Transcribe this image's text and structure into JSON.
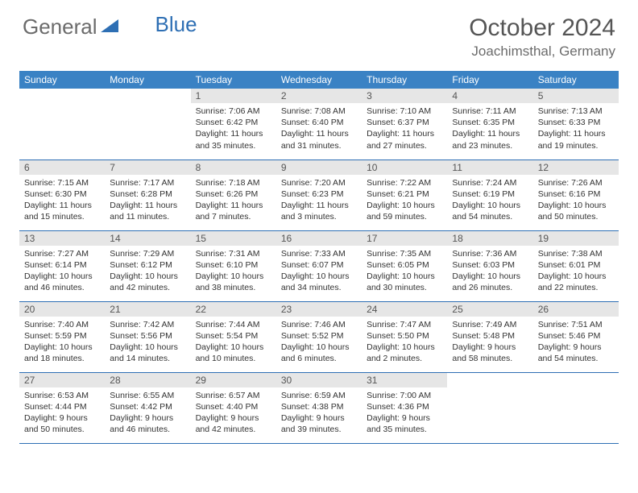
{
  "brand": {
    "part1": "General",
    "part2": "Blue"
  },
  "title": "October 2024",
  "location": "Joachimsthal, Germany",
  "colors": {
    "header_bg": "#3a82c4",
    "header_text": "#ffffff",
    "daynum_bg": "#e6e6e6",
    "text": "#333333",
    "rule": "#2e6fb4",
    "title_text": "#555555"
  },
  "font": {
    "family": "Arial",
    "title_size": 30,
    "location_size": 17,
    "dayhead_size": 12,
    "body_size": 10.5
  },
  "day_headers": [
    "Sunday",
    "Monday",
    "Tuesday",
    "Wednesday",
    "Thursday",
    "Friday",
    "Saturday"
  ],
  "weeks": [
    [
      null,
      null,
      {
        "n": "1",
        "sr": "7:06 AM",
        "ss": "6:42 PM",
        "dl": "11 hours and 35 minutes."
      },
      {
        "n": "2",
        "sr": "7:08 AM",
        "ss": "6:40 PM",
        "dl": "11 hours and 31 minutes."
      },
      {
        "n": "3",
        "sr": "7:10 AM",
        "ss": "6:37 PM",
        "dl": "11 hours and 27 minutes."
      },
      {
        "n": "4",
        "sr": "7:11 AM",
        "ss": "6:35 PM",
        "dl": "11 hours and 23 minutes."
      },
      {
        "n": "5",
        "sr": "7:13 AM",
        "ss": "6:33 PM",
        "dl": "11 hours and 19 minutes."
      }
    ],
    [
      {
        "n": "6",
        "sr": "7:15 AM",
        "ss": "6:30 PM",
        "dl": "11 hours and 15 minutes."
      },
      {
        "n": "7",
        "sr": "7:17 AM",
        "ss": "6:28 PM",
        "dl": "11 hours and 11 minutes."
      },
      {
        "n": "8",
        "sr": "7:18 AM",
        "ss": "6:26 PM",
        "dl": "11 hours and 7 minutes."
      },
      {
        "n": "9",
        "sr": "7:20 AM",
        "ss": "6:23 PM",
        "dl": "11 hours and 3 minutes."
      },
      {
        "n": "10",
        "sr": "7:22 AM",
        "ss": "6:21 PM",
        "dl": "10 hours and 59 minutes."
      },
      {
        "n": "11",
        "sr": "7:24 AM",
        "ss": "6:19 PM",
        "dl": "10 hours and 54 minutes."
      },
      {
        "n": "12",
        "sr": "7:26 AM",
        "ss": "6:16 PM",
        "dl": "10 hours and 50 minutes."
      }
    ],
    [
      {
        "n": "13",
        "sr": "7:27 AM",
        "ss": "6:14 PM",
        "dl": "10 hours and 46 minutes."
      },
      {
        "n": "14",
        "sr": "7:29 AM",
        "ss": "6:12 PM",
        "dl": "10 hours and 42 minutes."
      },
      {
        "n": "15",
        "sr": "7:31 AM",
        "ss": "6:10 PM",
        "dl": "10 hours and 38 minutes."
      },
      {
        "n": "16",
        "sr": "7:33 AM",
        "ss": "6:07 PM",
        "dl": "10 hours and 34 minutes."
      },
      {
        "n": "17",
        "sr": "7:35 AM",
        "ss": "6:05 PM",
        "dl": "10 hours and 30 minutes."
      },
      {
        "n": "18",
        "sr": "7:36 AM",
        "ss": "6:03 PM",
        "dl": "10 hours and 26 minutes."
      },
      {
        "n": "19",
        "sr": "7:38 AM",
        "ss": "6:01 PM",
        "dl": "10 hours and 22 minutes."
      }
    ],
    [
      {
        "n": "20",
        "sr": "7:40 AM",
        "ss": "5:59 PM",
        "dl": "10 hours and 18 minutes."
      },
      {
        "n": "21",
        "sr": "7:42 AM",
        "ss": "5:56 PM",
        "dl": "10 hours and 14 minutes."
      },
      {
        "n": "22",
        "sr": "7:44 AM",
        "ss": "5:54 PM",
        "dl": "10 hours and 10 minutes."
      },
      {
        "n": "23",
        "sr": "7:46 AM",
        "ss": "5:52 PM",
        "dl": "10 hours and 6 minutes."
      },
      {
        "n": "24",
        "sr": "7:47 AM",
        "ss": "5:50 PM",
        "dl": "10 hours and 2 minutes."
      },
      {
        "n": "25",
        "sr": "7:49 AM",
        "ss": "5:48 PM",
        "dl": "9 hours and 58 minutes."
      },
      {
        "n": "26",
        "sr": "7:51 AM",
        "ss": "5:46 PM",
        "dl": "9 hours and 54 minutes."
      }
    ],
    [
      {
        "n": "27",
        "sr": "6:53 AM",
        "ss": "4:44 PM",
        "dl": "9 hours and 50 minutes."
      },
      {
        "n": "28",
        "sr": "6:55 AM",
        "ss": "4:42 PM",
        "dl": "9 hours and 46 minutes."
      },
      {
        "n": "29",
        "sr": "6:57 AM",
        "ss": "4:40 PM",
        "dl": "9 hours and 42 minutes."
      },
      {
        "n": "30",
        "sr": "6:59 AM",
        "ss": "4:38 PM",
        "dl": "9 hours and 39 minutes."
      },
      {
        "n": "31",
        "sr": "7:00 AM",
        "ss": "4:36 PM",
        "dl": "9 hours and 35 minutes."
      },
      null,
      null
    ]
  ],
  "labels": {
    "sunrise": "Sunrise:",
    "sunset": "Sunset:",
    "daylight": "Daylight:"
  }
}
